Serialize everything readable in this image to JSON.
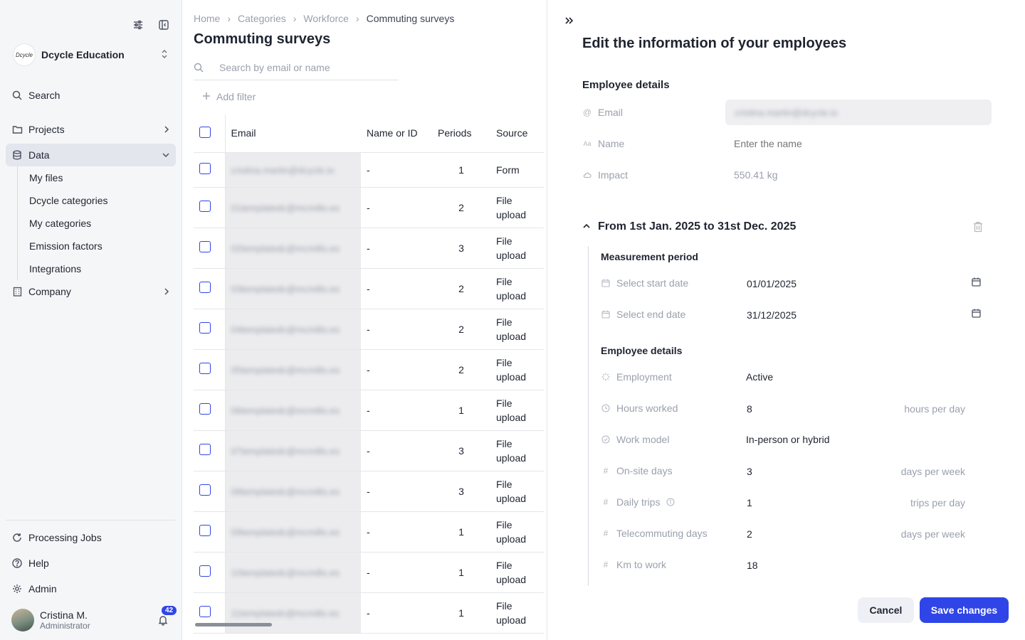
{
  "sidebar": {
    "org_logo": "Dcycle",
    "org_name": "Dcycle Education",
    "search_label": "Search",
    "items": [
      {
        "label": "Projects"
      },
      {
        "label": "Data"
      },
      {
        "label": "Company"
      }
    ],
    "data_subitems": [
      "My files",
      "Dcycle categories",
      "My categories",
      "Emission factors",
      "Integrations"
    ],
    "bottom": {
      "processing_jobs": "Processing Jobs",
      "help": "Help",
      "admin": "Admin"
    },
    "user": {
      "name": "Cristina M.",
      "role": "Administrator",
      "notifications": "42"
    }
  },
  "breadcrumb": [
    "Home",
    "Categories",
    "Workforce",
    "Commuting surveys"
  ],
  "page_title": "Commuting surveys",
  "search": {
    "placeholder": "Search by email or name"
  },
  "add_filter": "Add filter",
  "table": {
    "headers": {
      "email": "Email",
      "name": "Name or ID",
      "periods": "Periods",
      "source": "Source"
    },
    "rows": [
      {
        "email": "cristina.martin@dcycle.io",
        "name": "-",
        "periods": "1",
        "source": "Form"
      },
      {
        "email": "01templatedc@mcmillo.es",
        "name": "-",
        "periods": "2",
        "source": "File upload"
      },
      {
        "email": "02templatedc@mcmillo.es",
        "name": "-",
        "periods": "3",
        "source": "File upload"
      },
      {
        "email": "03templatedc@mcmillo.es",
        "name": "-",
        "periods": "2",
        "source": "File upload"
      },
      {
        "email": "04templatedc@mcmillo.es",
        "name": "-",
        "periods": "2",
        "source": "File upload"
      },
      {
        "email": "05templatedc@mcmillo.es",
        "name": "-",
        "periods": "2",
        "source": "File upload"
      },
      {
        "email": "06templatedc@mcmillo.es",
        "name": "-",
        "periods": "1",
        "source": "File upload"
      },
      {
        "email": "07templatedc@mcmillo.es",
        "name": "-",
        "periods": "3",
        "source": "File upload"
      },
      {
        "email": "08templatedc@mcmillo.es",
        "name": "-",
        "periods": "3",
        "source": "File upload"
      },
      {
        "email": "09templatedc@mcmillo.es",
        "name": "-",
        "periods": "1",
        "source": "File upload"
      },
      {
        "email": "10templatedc@mcmillo.es",
        "name": "-",
        "periods": "1",
        "source": "File upload"
      },
      {
        "email": "11templatedc@mcmillo.es",
        "name": "-",
        "periods": "1",
        "source": "File upload"
      }
    ]
  },
  "drawer": {
    "title": "Edit the information of your employees",
    "employee_details_title": "Employee details",
    "email_label": "Email",
    "email_value": "cristina.martin@dcycle.io",
    "name_label": "Name",
    "name_placeholder": "Enter the name",
    "impact_label": "Impact",
    "impact_value": "550.41 kg",
    "period_title": "From 1st Jan. 2025 to 31st Dec. 2025",
    "measurement_period_title": "Measurement period",
    "start_label": "Select start date",
    "start_value": "01/01/2025",
    "end_label": "Select end date",
    "end_value": "31/12/2025",
    "period_details_title": "Employee details",
    "employment_label": "Employment",
    "employment_value": "Active",
    "hours_label": "Hours worked",
    "hours_value": "8",
    "hours_unit": "hours per day",
    "work_model_label": "Work model",
    "work_model_value": "In-person or hybrid",
    "onsite_label": "On-site days",
    "onsite_value": "3",
    "onsite_unit": "days per week",
    "trips_label": "Daily trips",
    "trips_value": "1",
    "trips_unit": "trips per day",
    "telecommuting_label": "Telecommuting days",
    "telecommuting_value": "2",
    "telecommuting_unit": "days per week",
    "km_label": "Km to work",
    "km_value": "18",
    "cancel": "Cancel",
    "save": "Save changes"
  },
  "colors": {
    "accent": "#2f45e8",
    "sidebar_bg": "#f5f6f8"
  }
}
